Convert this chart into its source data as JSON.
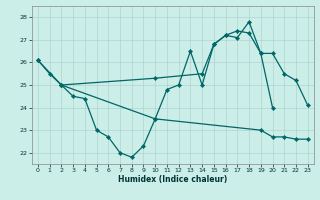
{
  "background_color": "#cceee8",
  "grid_color": "#aacccc",
  "line_color": "#006666",
  "xlabel": "Humidex (Indice chaleur)",
  "xlim": [
    -0.5,
    23.5
  ],
  "ylim": [
    21.5,
    28.5
  ],
  "yticks": [
    22,
    23,
    24,
    25,
    26,
    27,
    28
  ],
  "xticks": [
    0,
    1,
    2,
    3,
    4,
    5,
    6,
    7,
    8,
    9,
    10,
    11,
    12,
    13,
    14,
    15,
    16,
    17,
    18,
    19,
    20,
    21,
    22,
    23
  ],
  "curve1_x": [
    0,
    1,
    2,
    3,
    4,
    5,
    6,
    7,
    8,
    9,
    10,
    11,
    12,
    13,
    14,
    15,
    16,
    17,
    18,
    19,
    20
  ],
  "curve1_y": [
    26.1,
    25.5,
    25.0,
    24.5,
    24.4,
    23.0,
    22.7,
    22.0,
    21.8,
    22.3,
    23.5,
    24.8,
    25.0,
    26.5,
    25.0,
    26.8,
    27.2,
    27.1,
    27.8,
    26.4,
    24.0
  ],
  "curve2_x": [
    2,
    10,
    14,
    15,
    16,
    17,
    18,
    19,
    20,
    21,
    22,
    23
  ],
  "curve2_y": [
    25.0,
    25.3,
    25.5,
    26.8,
    27.2,
    27.4,
    27.3,
    26.4,
    26.4,
    25.5,
    25.2,
    24.1
  ],
  "curve3_x": [
    0,
    2,
    10,
    19,
    20,
    21,
    22,
    23
  ],
  "curve3_y": [
    26.1,
    25.0,
    23.5,
    23.0,
    22.7,
    22.7,
    22.6,
    22.6
  ]
}
